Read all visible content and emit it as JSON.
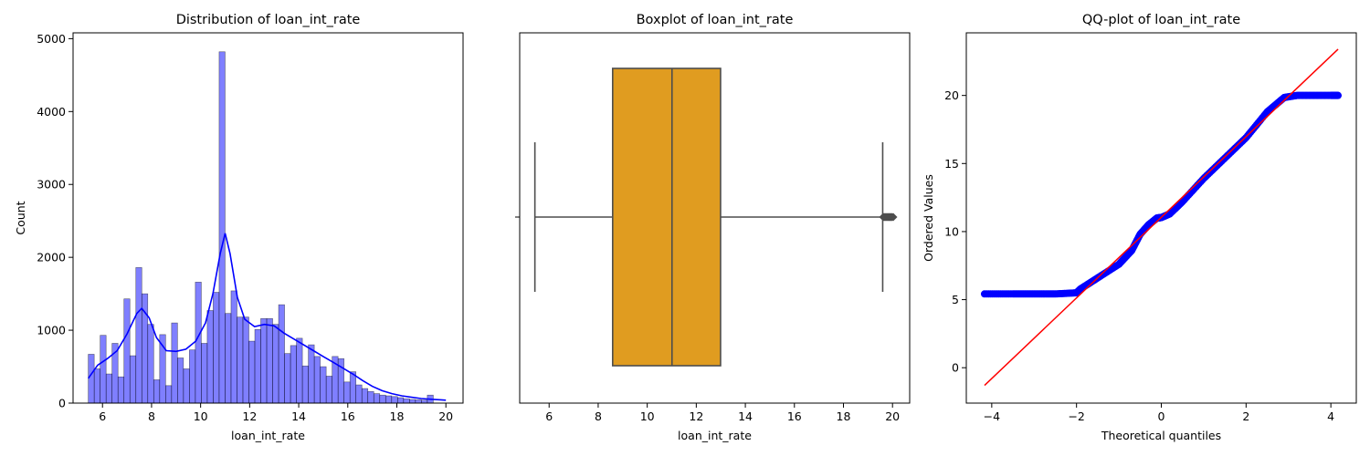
{
  "chart_data": [
    {
      "type": "histogram",
      "title": "Distribution of loan_int_rate",
      "xlabel": "loan_int_rate",
      "ylabel": "Count",
      "xlim": [
        4.8,
        20.7
      ],
      "ylim": [
        0,
        5080
      ],
      "xticks": [
        6,
        8,
        10,
        12,
        14,
        16,
        18,
        20
      ],
      "yticks": [
        0,
        1000,
        2000,
        3000,
        4000,
        5000
      ],
      "grid": false,
      "bar_color": "#0000ff",
      "kde_color": "#0000ff",
      "bins": {
        "start": 5.42,
        "width": 0.2425,
        "counts": [
          670,
          470,
          930,
          400,
          820,
          360,
          1430,
          650,
          1860,
          1500,
          1080,
          320,
          940,
          240,
          1100,
          620,
          470,
          730,
          1660,
          820,
          1270,
          1520,
          4820,
          1230,
          1540,
          1180,
          1180,
          850,
          1010,
          1160,
          1160,
          1080,
          1350,
          680,
          790,
          890,
          510,
          800,
          640,
          500,
          370,
          640,
          610,
          290,
          430,
          250,
          200,
          160,
          130,
          110,
          100,
          90,
          75,
          60,
          50,
          45,
          40,
          110
        ]
      },
      "kde": {
        "x": [
          5.42,
          5.8,
          6.2,
          6.6,
          7.0,
          7.4,
          7.6,
          7.9,
          8.2,
          8.6,
          9.0,
          9.4,
          9.8,
          10.2,
          10.5,
          10.8,
          11.0,
          11.2,
          11.5,
          11.8,
          12.2,
          12.6,
          13.0,
          13.4,
          13.8,
          14.2,
          14.6,
          15.0,
          15.4,
          15.8,
          16.2,
          16.6,
          17.0,
          17.4,
          17.8,
          18.2,
          18.6,
          19.0,
          19.4,
          19.8,
          20.0
        ],
        "y": [
          340,
          520,
          610,
          720,
          950,
          1230,
          1300,
          1170,
          900,
          720,
          710,
          740,
          850,
          1100,
          1500,
          2050,
          2330,
          2050,
          1450,
          1150,
          1050,
          1080,
          1060,
          960,
          880,
          800,
          720,
          640,
          560,
          480,
          400,
          310,
          230,
          170,
          130,
          100,
          80,
          62,
          52,
          45,
          40
        ]
      }
    },
    {
      "type": "boxplot",
      "title": "Boxplot of loan_int_rate",
      "xlabel": "loan_int_rate",
      "xlim": [
        4.8,
        20.7
      ],
      "xticks": [
        6,
        8,
        10,
        12,
        14,
        16,
        18,
        20
      ],
      "whisker_low": 5.42,
      "q1": 8.59,
      "median": 11.01,
      "q3": 12.99,
      "whisker_high": 19.6,
      "outliers": [
        19.62,
        19.66,
        19.7,
        19.74,
        19.78,
        19.82,
        19.86,
        19.9,
        19.94,
        19.98,
        20.03
      ],
      "box_color": "#e09c20",
      "line_color": "#4d4d4d"
    },
    {
      "type": "scatter",
      "title": "QQ-plot of loan_int_rate",
      "xlabel": "Theoretical quantiles",
      "ylabel": "Ordered Values",
      "xlim": [
        -4.6,
        4.6
      ],
      "ylim": [
        -2.6,
        24.6
      ],
      "xticks": [
        -4,
        -2,
        0,
        2,
        4
      ],
      "yticks": [
        0,
        5,
        10,
        15,
        20
      ],
      "point_color": "#0000ff",
      "line_color": "#ff0000",
      "quantile_curve": {
        "x": [
          -4.17,
          -3.5,
          -3.0,
          -2.5,
          -2.0,
          -1.9,
          -1.5,
          -1.0,
          -0.7,
          -0.5,
          -0.3,
          -0.1,
          0.0,
          0.2,
          0.5,
          1.0,
          1.5,
          2.0,
          2.5,
          2.9,
          3.2,
          3.6,
          4.0,
          4.17
        ],
        "y": [
          5.42,
          5.42,
          5.42,
          5.42,
          5.5,
          5.8,
          6.6,
          7.6,
          8.6,
          9.8,
          10.5,
          11.0,
          11.03,
          11.3,
          12.2,
          13.9,
          15.4,
          16.9,
          18.8,
          19.85,
          20.0,
          20.0,
          20.0,
          20.0
        ]
      },
      "fit_line": {
        "x": [
          -4.17,
          4.17
        ],
        "y": [
          -1.3,
          23.4
        ]
      }
    }
  ]
}
